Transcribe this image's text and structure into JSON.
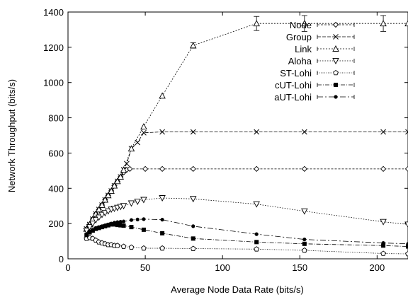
{
  "chart_data": {
    "type": "line",
    "title": "",
    "xlabel": "Average Node Data Rate (bits/s)",
    "ylabel": "Network Throughput (bits/s)",
    "xlim": [
      0,
      220
    ],
    "ylim": [
      0,
      1400
    ],
    "xticks": [
      0,
      50,
      100,
      150,
      200
    ],
    "yticks": [
      0,
      200,
      400,
      600,
      800,
      1000,
      1200,
      1400
    ],
    "grid": false,
    "legend_position": "top-right",
    "series": [
      {
        "name": "Node",
        "marker": "diamond",
        "dash": "3,2",
        "x": [
          12,
          14,
          16,
          18,
          20,
          22,
          24,
          26,
          28,
          30,
          32,
          34,
          36,
          38,
          40,
          50,
          61,
          81,
          122,
          153,
          204,
          220
        ],
        "y": [
          170,
          195,
          225,
          255,
          280,
          305,
          335,
          360,
          385,
          415,
          440,
          465,
          490,
          505,
          510,
          510,
          510,
          510,
          510,
          510,
          510,
          510
        ]
      },
      {
        "name": "Group",
        "marker": "x",
        "dash": "5,2",
        "x": [
          12,
          14,
          16,
          18,
          20,
          22,
          24,
          26,
          28,
          30,
          32,
          34,
          36,
          38,
          41,
          45,
          49,
          61,
          81,
          122,
          153,
          204,
          220
        ],
        "y": [
          170,
          195,
          225,
          255,
          280,
          305,
          335,
          360,
          385,
          415,
          440,
          465,
          505,
          540,
          625,
          660,
          715,
          720,
          720,
          720,
          720,
          720,
          720
        ]
      },
      {
        "name": "Link",
        "marker": "triangle-up",
        "dash": "2,2",
        "x": [
          12,
          14,
          16,
          18,
          20,
          22,
          24,
          26,
          28,
          30,
          32,
          34,
          36,
          41,
          49,
          61,
          81,
          122,
          153,
          204,
          220
        ],
        "y": [
          170,
          195,
          225,
          255,
          280,
          305,
          335,
          360,
          385,
          415,
          440,
          465,
          505,
          625,
          750,
          925,
          1210,
          1335,
          1335,
          1335,
          1335
        ],
        "errorbars": [
          {
            "x": 81,
            "low": 1195,
            "high": 1225
          },
          {
            "x": 122,
            "low": 1295,
            "high": 1375
          },
          {
            "x": 153,
            "low": 1290,
            "high": 1380
          },
          {
            "x": 204,
            "low": 1290,
            "high": 1380
          }
        ]
      },
      {
        "name": "Aloha",
        "marker": "triangle-down",
        "dash": "1.5,2",
        "x": [
          12,
          14,
          16,
          18,
          20,
          22,
          24,
          26,
          28,
          30,
          32,
          34,
          36,
          41,
          45,
          49,
          61,
          81,
          122,
          153,
          204,
          220
        ],
        "y": [
          160,
          180,
          200,
          220,
          235,
          250,
          260,
          270,
          280,
          285,
          290,
          295,
          300,
          315,
          325,
          335,
          345,
          340,
          310,
          270,
          210,
          195
        ]
      },
      {
        "name": "ST-Lohi",
        "marker": "pentagon",
        "dash": "1,1.5",
        "x": [
          12,
          14,
          16,
          18,
          20,
          22,
          24,
          26,
          28,
          30,
          32,
          36,
          41,
          49,
          61,
          81,
          122,
          153,
          204,
          220
        ],
        "y": [
          115,
          120,
          115,
          105,
          95,
          90,
          85,
          80,
          80,
          75,
          75,
          70,
          65,
          60,
          60,
          58,
          55,
          48,
          30,
          28
        ]
      },
      {
        "name": "cUT-Lohi",
        "marker": "square",
        "dash": "6,2,1,2",
        "x": [
          12,
          14,
          16,
          18,
          20,
          22,
          24,
          26,
          28,
          30,
          32,
          34,
          36,
          41,
          49,
          61,
          81,
          122,
          153,
          204,
          220
        ],
        "y": [
          135,
          150,
          160,
          170,
          175,
          180,
          185,
          190,
          195,
          195,
          192,
          190,
          188,
          180,
          165,
          145,
          115,
          95,
          85,
          75,
          70
        ]
      },
      {
        "name": "aUT-Lohi",
        "marker": "dot",
        "dash": "8,3,2,3",
        "x": [
          12,
          14,
          16,
          18,
          20,
          22,
          24,
          26,
          28,
          30,
          32,
          34,
          36,
          41,
          45,
          49,
          61,
          81,
          122,
          153,
          204,
          220
        ],
        "y": [
          140,
          155,
          165,
          175,
          180,
          185,
          190,
          195,
          200,
          205,
          208,
          210,
          212,
          220,
          223,
          225,
          222,
          185,
          140,
          110,
          90,
          85
        ]
      }
    ]
  }
}
